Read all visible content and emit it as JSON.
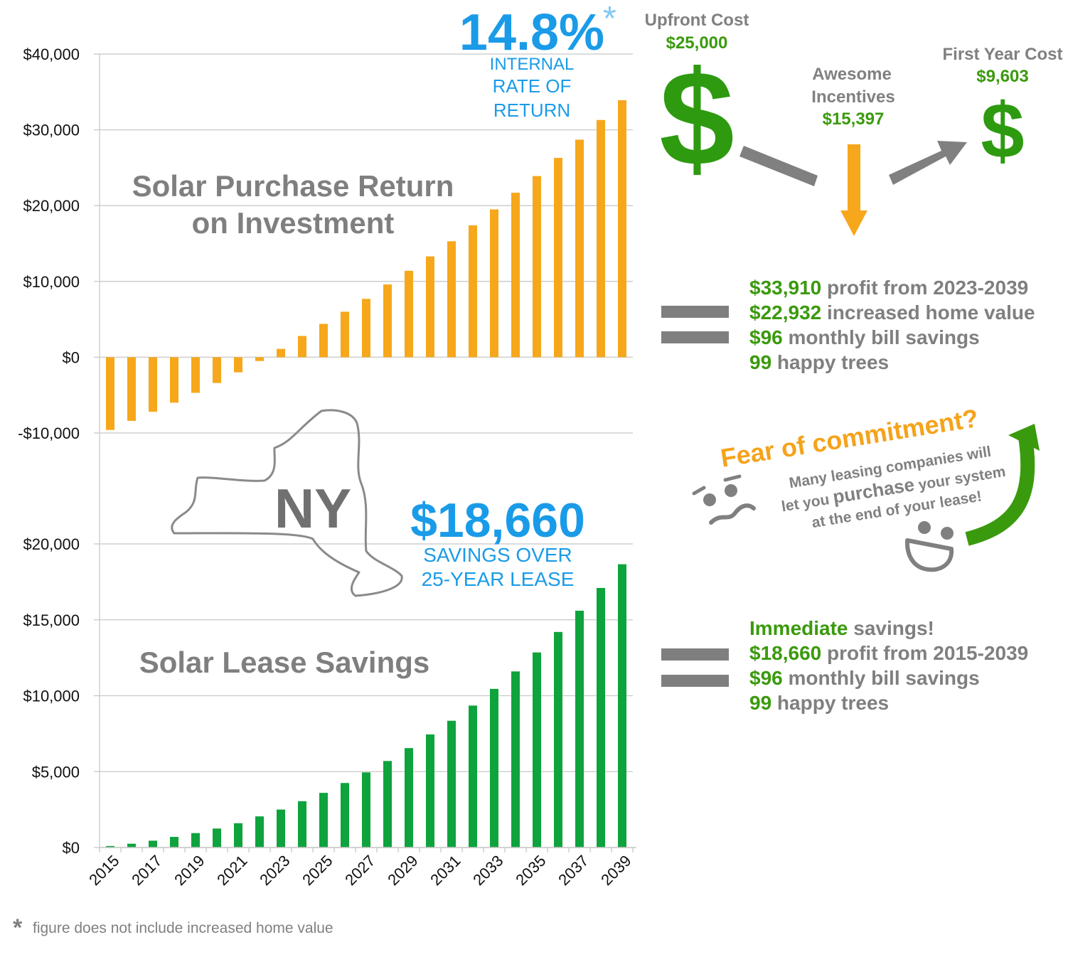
{
  "chart_data": [
    {
      "type": "bar",
      "title": "Solar Purchase Return on Investment",
      "title_lines": [
        "Solar Purchase Return",
        "on Investment"
      ],
      "color": "#f7a71b",
      "ylim": [
        -18000,
        40000
      ],
      "yticks": [
        40000,
        30000,
        20000,
        10000,
        0,
        -10000
      ],
      "ytick_labels": [
        "$40,000",
        "$30,000",
        "$20,000",
        "$10,000",
        "$0",
        "-$10,000"
      ],
      "categories": [
        2015,
        2016,
        2017,
        2018,
        2019,
        2020,
        2021,
        2022,
        2023,
        2024,
        2025,
        2026,
        2027,
        2028,
        2029,
        2030,
        2031,
        2032,
        2033,
        2034,
        2035,
        2036,
        2037,
        2038,
        2039
      ],
      "values": [
        -9600,
        -8400,
        -7200,
        -6000,
        -4700,
        -3400,
        -2000,
        -500,
        1100,
        2800,
        4400,
        6000,
        7700,
        9600,
        11400,
        13300,
        15300,
        17400,
        19500,
        21700,
        23900,
        26300,
        28700,
        31300,
        33910
      ]
    },
    {
      "type": "bar",
      "title": "Solar Lease Savings",
      "color": "#0ea33d",
      "ylim": [
        0,
        20000
      ],
      "yticks": [
        20000,
        15000,
        10000,
        5000,
        0
      ],
      "ytick_labels": [
        "$20,000",
        "$15,000",
        "$10,000",
        "$5,000",
        "$0"
      ],
      "categories": [
        2015,
        2016,
        2017,
        2018,
        2019,
        2020,
        2021,
        2022,
        2023,
        2024,
        2025,
        2026,
        2027,
        2028,
        2029,
        2030,
        2031,
        2032,
        2033,
        2034,
        2035,
        2036,
        2037,
        2038,
        2039
      ],
      "xtick_labels": [
        "2015",
        "2017",
        "2019",
        "2021",
        "2023",
        "2025",
        "2027",
        "2029",
        "2031",
        "2033",
        "2035",
        "2037",
        "2039"
      ],
      "values": [
        100,
        250,
        450,
        700,
        950,
        1250,
        1600,
        2050,
        2500,
        3050,
        3600,
        4250,
        4950,
        5700,
        6550,
        7450,
        8350,
        9350,
        10450,
        11600,
        12850,
        14200,
        15600,
        17100,
        18660
      ]
    }
  ],
  "irr": {
    "value": "14.8%",
    "asterisk": "*",
    "label_lines": [
      "INTERNAL",
      "RATE OF",
      "RETURN"
    ]
  },
  "lease_total": {
    "value": "$18,660",
    "label_lines": [
      "SAVINGS OVER",
      "25-YEAR LEASE"
    ]
  },
  "state_label": "NY",
  "flow": {
    "upfront": {
      "label": "Upfront Cost",
      "amount": "$25,000"
    },
    "incentives": {
      "label_lines": [
        "Awesome",
        "Incentives"
      ],
      "amount": "$15,397"
    },
    "first_year": {
      "label": "First Year Cost",
      "amount": "$9,603"
    },
    "dollar_symbol": "$"
  },
  "purchase_facts": [
    {
      "value": "$33,910",
      "text": " profit from 2023-2039"
    },
    {
      "value": "$22,932",
      "text": " increased home value"
    },
    {
      "value": "$96",
      "text": " monthly bill savings"
    },
    {
      "value": "99",
      "text": " happy trees"
    }
  ],
  "commitment": {
    "title": "Fear of commitment?",
    "lines": [
      "Many leasing companies will",
      "let you ",
      "purchase",
      " your system",
      "at the end of your lease!"
    ]
  },
  "lease_facts": [
    {
      "value": "Immediate",
      "text": " savings!"
    },
    {
      "value": "$18,660",
      "text": " profit from 2015-2039"
    },
    {
      "value": "$96",
      "text": " monthly bill savings"
    },
    {
      "value": "99",
      "text": " happy trees"
    }
  ],
  "footnote": {
    "mark": "*",
    "text": "figure does not include increased home value"
  },
  "colors": {
    "gray": "#808080",
    "green": "#3a9a0d",
    "blue": "#1a9be8",
    "orange": "#f7a71b"
  }
}
